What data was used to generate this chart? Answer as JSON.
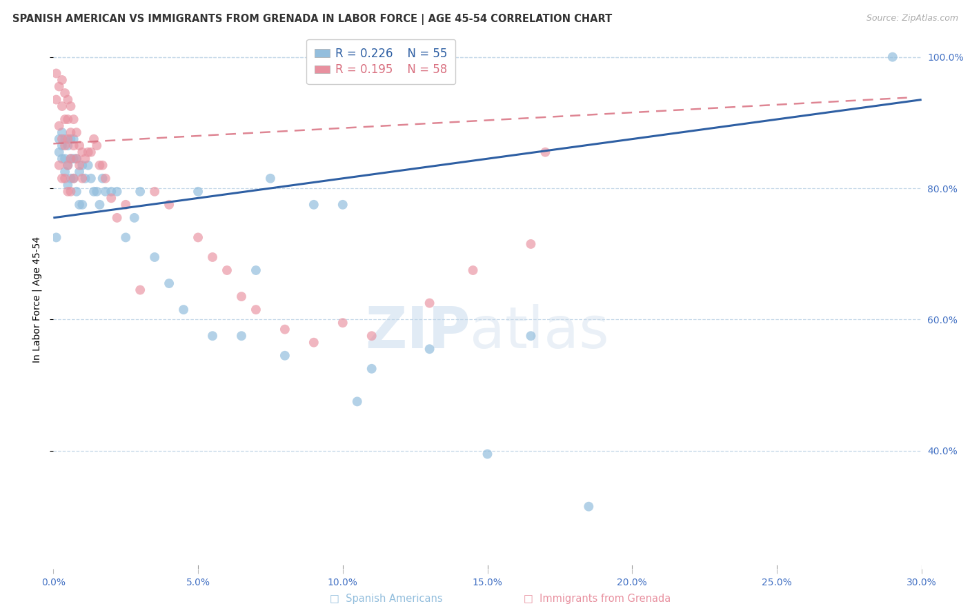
{
  "title": "SPANISH AMERICAN VS IMMIGRANTS FROM GRENADA IN LABOR FORCE | AGE 45-54 CORRELATION CHART",
  "source": "Source: ZipAtlas.com",
  "ylabel": "In Labor Force | Age 45-54",
  "xlim": [
    0.0,
    0.3
  ],
  "ylim": [
    0.22,
    1.04
  ],
  "xticks": [
    0.0,
    0.05,
    0.1,
    0.15,
    0.2,
    0.25,
    0.3
  ],
  "xticklabels": [
    "0.0%",
    "5.0%",
    "10.0%",
    "15.0%",
    "20.0%",
    "25.0%",
    "30.0%"
  ],
  "yticks": [
    0.4,
    0.6,
    0.8,
    1.0
  ],
  "yticklabels": [
    "40.0%",
    "60.0%",
    "80.0%",
    "100.0%"
  ],
  "blue_color": "#93bedd",
  "pink_color": "#e8909f",
  "blue_line_color": "#2e5fa3",
  "pink_line_color": "#d97080",
  "legend_R1": "R = 0.226",
  "legend_N1": "N = 55",
  "legend_R2": "R = 0.195",
  "legend_N2": "N = 58",
  "blue_label": "Spanish Americans",
  "pink_label": "Immigrants from Grenada",
  "grid_color": "#c5d8e8",
  "axis_text_color": "#4472c4",
  "title_color": "#333333",
  "title_fontsize": 10.5,
  "label_fontsize": 10,
  "tick_fontsize": 10,
  "source_fontsize": 9,
  "legend_fontsize": 12,
  "blue_line_x0": 0.0,
  "blue_line_x1": 0.3,
  "blue_line_y0": 0.755,
  "blue_line_y1": 0.935,
  "pink_line_x0": 0.0,
  "pink_line_x1": 0.295,
  "pink_line_y0": 0.868,
  "pink_line_y1": 0.938,
  "blue_scatter_x": [
    0.001,
    0.002,
    0.002,
    0.003,
    0.003,
    0.003,
    0.004,
    0.004,
    0.004,
    0.005,
    0.005,
    0.005,
    0.006,
    0.006,
    0.006,
    0.007,
    0.007,
    0.007,
    0.008,
    0.008,
    0.009,
    0.009,
    0.01,
    0.01,
    0.011,
    0.012,
    0.013,
    0.014,
    0.015,
    0.016,
    0.017,
    0.018,
    0.02,
    0.022,
    0.025,
    0.028,
    0.03,
    0.035,
    0.04,
    0.045,
    0.05,
    0.055,
    0.065,
    0.07,
    0.075,
    0.08,
    0.09,
    0.1,
    0.105,
    0.11,
    0.13,
    0.15,
    0.165,
    0.185,
    0.29
  ],
  "blue_scatter_y": [
    0.725,
    0.855,
    0.875,
    0.845,
    0.865,
    0.885,
    0.825,
    0.845,
    0.875,
    0.805,
    0.835,
    0.865,
    0.815,
    0.845,
    0.875,
    0.815,
    0.845,
    0.875,
    0.795,
    0.845,
    0.775,
    0.825,
    0.775,
    0.835,
    0.815,
    0.835,
    0.815,
    0.795,
    0.795,
    0.775,
    0.815,
    0.795,
    0.795,
    0.795,
    0.725,
    0.755,
    0.795,
    0.695,
    0.655,
    0.615,
    0.795,
    0.575,
    0.575,
    0.675,
    0.815,
    0.545,
    0.775,
    0.775,
    0.475,
    0.525,
    0.555,
    0.395,
    0.575,
    0.315,
    1.0
  ],
  "pink_scatter_x": [
    0.001,
    0.001,
    0.002,
    0.002,
    0.002,
    0.003,
    0.003,
    0.003,
    0.003,
    0.004,
    0.004,
    0.004,
    0.004,
    0.005,
    0.005,
    0.005,
    0.005,
    0.005,
    0.006,
    0.006,
    0.006,
    0.006,
    0.007,
    0.007,
    0.007,
    0.008,
    0.008,
    0.009,
    0.009,
    0.01,
    0.01,
    0.011,
    0.012,
    0.013,
    0.014,
    0.015,
    0.016,
    0.017,
    0.018,
    0.02,
    0.022,
    0.025,
    0.03,
    0.035,
    0.04,
    0.05,
    0.055,
    0.06,
    0.065,
    0.07,
    0.08,
    0.09,
    0.1,
    0.11,
    0.13,
    0.145,
    0.165,
    0.17
  ],
  "pink_scatter_y": [
    0.975,
    0.935,
    0.955,
    0.895,
    0.835,
    0.965,
    0.925,
    0.875,
    0.815,
    0.945,
    0.905,
    0.865,
    0.815,
    0.935,
    0.905,
    0.875,
    0.835,
    0.795,
    0.925,
    0.885,
    0.845,
    0.795,
    0.905,
    0.865,
    0.815,
    0.885,
    0.845,
    0.865,
    0.835,
    0.855,
    0.815,
    0.845,
    0.855,
    0.855,
    0.875,
    0.865,
    0.835,
    0.835,
    0.815,
    0.785,
    0.755,
    0.775,
    0.645,
    0.795,
    0.775,
    0.725,
    0.695,
    0.675,
    0.635,
    0.615,
    0.585,
    0.565,
    0.595,
    0.575,
    0.625,
    0.675,
    0.715,
    0.855
  ]
}
